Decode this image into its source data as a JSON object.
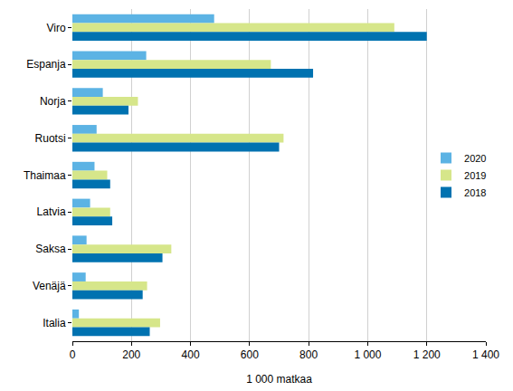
{
  "chart_data": {
    "type": "bar",
    "orientation": "horizontal",
    "x_label": "1 000 matkaa",
    "categories": [
      "Viro",
      "Espanja",
      "Norja",
      "Ruotsi",
      "Thaimaa",
      "Latvia",
      "Saksa",
      "Venäjä",
      "Italia"
    ],
    "series": [
      {
        "name": "2020",
        "color": "#5cb3e4",
        "values": [
          480,
          250,
          103,
          82,
          75,
          60,
          48,
          45,
          22
        ]
      },
      {
        "name": "2019",
        "color": "#d6e68a",
        "values": [
          1090,
          672,
          222,
          715,
          118,
          128,
          335,
          253,
          297
        ]
      },
      {
        "name": "2018",
        "color": "#0072b0",
        "values": [
          1200,
          815,
          190,
          700,
          128,
          135,
          305,
          238,
          262
        ]
      }
    ],
    "xlim": [
      0,
      1400
    ],
    "xticks": [
      0,
      200,
      400,
      600,
      800,
      {
        "value": 1000,
        "label": "1 000"
      },
      {
        "value": 1200,
        "label": "1 200"
      },
      {
        "value": 1400,
        "label": "1 400"
      }
    ],
    "grid": true,
    "legend": "right"
  }
}
